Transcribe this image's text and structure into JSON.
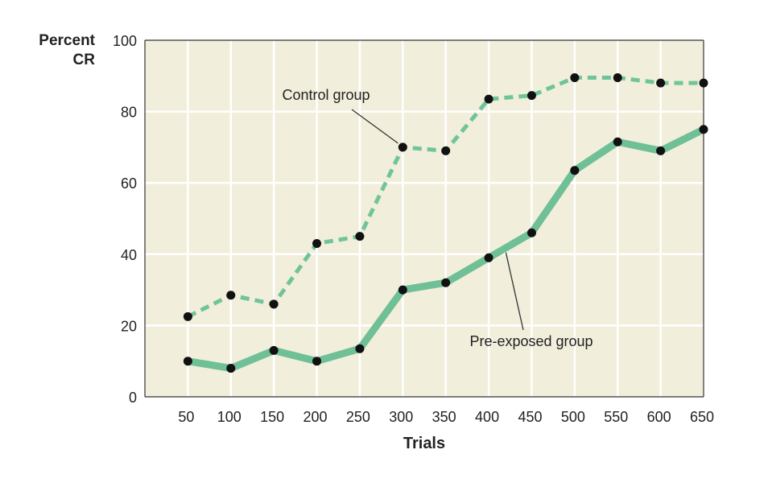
{
  "chart_data": {
    "type": "line",
    "title": "",
    "ylabel_lines": [
      "Percent",
      "CR"
    ],
    "xlabel": "Trials",
    "x": [
      50,
      100,
      150,
      200,
      250,
      300,
      350,
      400,
      450,
      500,
      550,
      600,
      650
    ],
    "ylim": [
      0,
      100
    ],
    "yticks": [
      0,
      20,
      40,
      60,
      80,
      100
    ],
    "xlim": [
      0,
      650
    ],
    "grid": true,
    "legend": "none",
    "series": [
      {
        "id": "control",
        "style": "dashed",
        "values": [
          22.5,
          28.5,
          26,
          43,
          45,
          70,
          69,
          83.5,
          84.5,
          89.5,
          89.5,
          88,
          88
        ]
      },
      {
        "id": "preexposed",
        "style": "solid",
        "values": [
          10,
          8,
          13,
          10,
          13.5,
          30,
          32,
          39,
          46,
          63.5,
          71.5,
          69,
          75
        ]
      }
    ],
    "annotations": [
      {
        "text": "Control group",
        "series": "control",
        "point_x": 300
      },
      {
        "text": "Pre-exposed group",
        "series": "preexposed",
        "point_x": 420
      }
    ]
  },
  "colors": {
    "plot_bg": "#f1eedb",
    "grid": "#ffffff",
    "axis": "#333333",
    "control_line": "#6fc49a",
    "preexposed_line": "#6fbf97",
    "marker": "#111111"
  }
}
